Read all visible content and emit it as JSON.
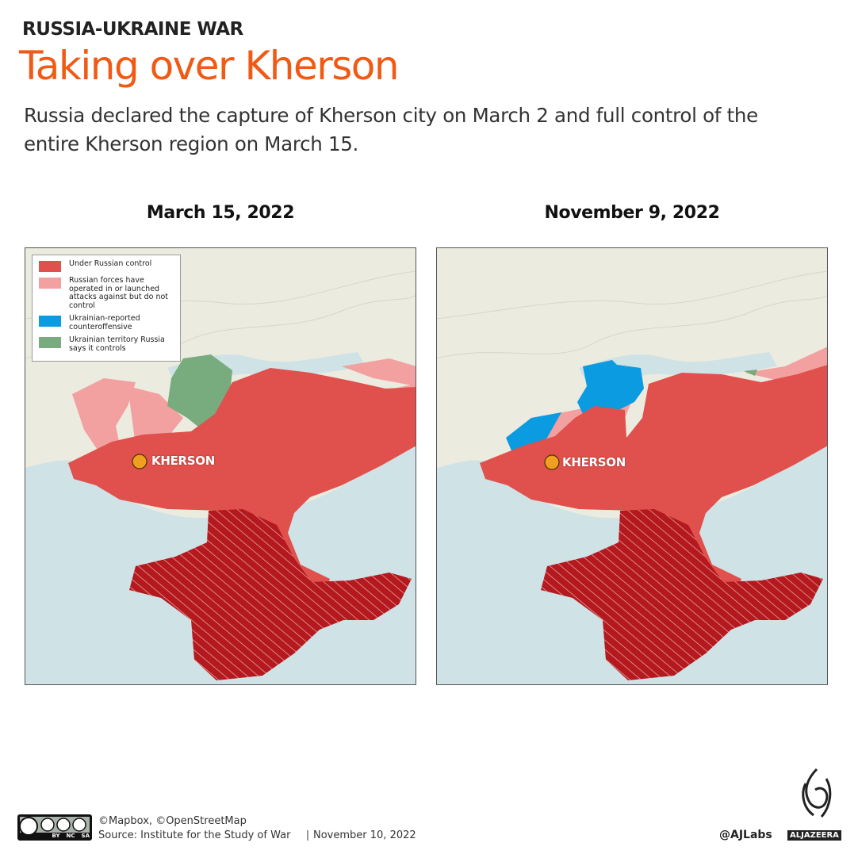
{
  "header": {
    "kicker": "RUSSIA-UKRAINE WAR",
    "title": "Taking over Kherson",
    "subtitle": "Russia declared the capture of Kherson city on March 2 and full control of the entire Kherson region on March 15."
  },
  "maps": [
    {
      "date": "March 15, 2022",
      "city_label": "KHERSON",
      "legend": [
        "Under Russian control",
        "Russian forces have operated in or launched attacks against but do not control",
        "Ukrainian-reported counteroffensive",
        "Ukrainian territory Russia says it controls"
      ]
    },
    {
      "date": "November 9, 2022",
      "city_label": "KHERSON"
    }
  ],
  "footer": {
    "license_badges": [
      "BY",
      "NC",
      "SA"
    ],
    "credits": "©Mapbox, ©OpenStreetMap",
    "source": "Source: Institute for the Study of War",
    "date": "November 10, 2022",
    "handle": "@AJLabs",
    "brand": "ALJAZEERA"
  }
}
